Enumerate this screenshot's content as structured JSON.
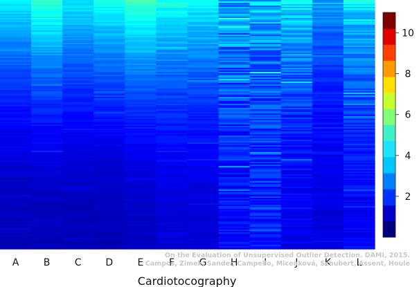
{
  "chart_data": {
    "type": "heatmap",
    "xlabel": "Cardiotocography",
    "categories": [
      "A",
      "B",
      "C",
      "D",
      "E",
      "F",
      "G",
      "H",
      "I",
      "J",
      "K",
      "L"
    ],
    "colorbar": {
      "min": 0,
      "max": 11,
      "ticks": [
        2,
        4,
        6,
        8,
        10
      ],
      "colors": [
        "#00007f",
        "#0000c8",
        "#0032ff",
        "#0080ff",
        "#00c8ff",
        "#1de3ff",
        "#3cf0c8",
        "#80ff7a",
        "#c8ff30",
        "#ffe000",
        "#ff9a00",
        "#ff4000",
        "#e00000",
        "#7f0000"
      ]
    },
    "column_profiles": {
      "description_free": true,
      "top_values": [
        4.0,
        4.8,
        4.0,
        4.4,
        4.9,
        4.4,
        4.2,
        3.2,
        3.4,
        3.9,
        3.0,
        3.9
      ],
      "bottom_values": [
        0.6,
        0.6,
        0.6,
        0.6,
        0.7,
        0.9,
        0.9,
        1.5,
        1.6,
        1.2,
        1.0,
        1.3
      ],
      "noise": [
        0.25,
        0.3,
        0.25,
        0.25,
        0.2,
        0.3,
        0.3,
        0.9,
        0.9,
        0.6,
        0.35,
        0.55
      ]
    }
  },
  "watermark": {
    "line1": "On the Evaluation of Unsupervised Outlier Detection. DAMI, 2015.",
    "line2": "Campos, Zimek, Sander, Campello, Micenková, Schubert, Assent, Houle"
  }
}
